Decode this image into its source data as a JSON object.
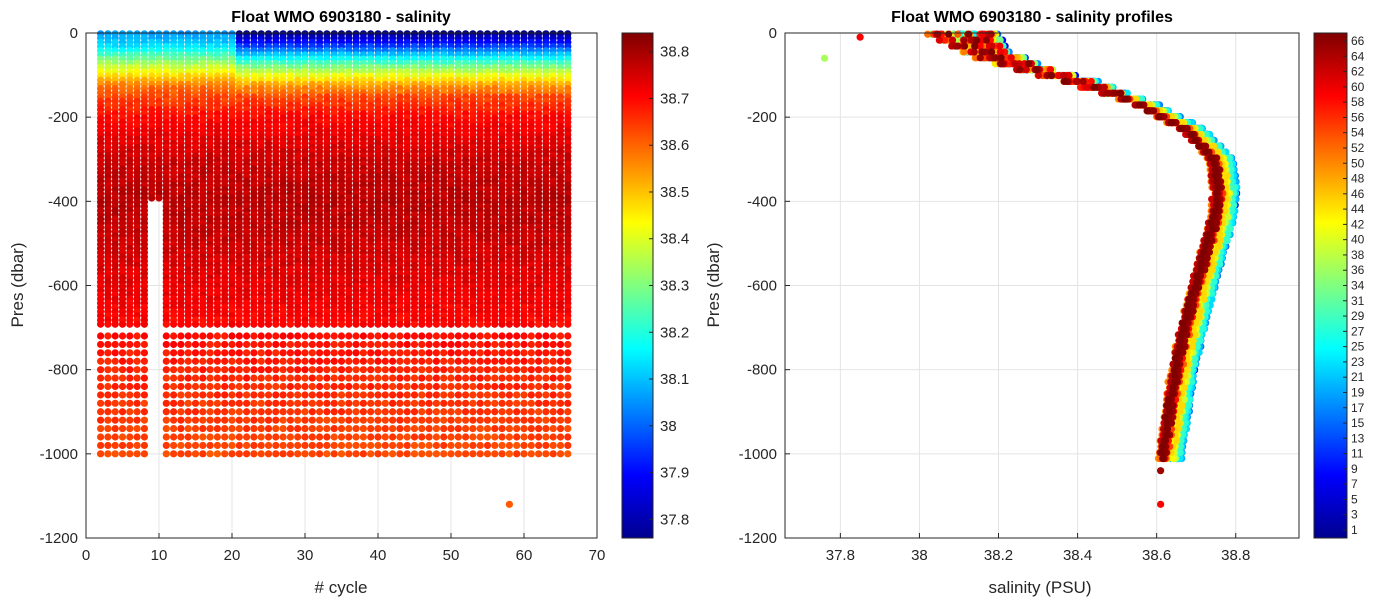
{
  "chart_data": [
    {
      "type": "scatter",
      "title": "Float WMO 6903180 - salinity",
      "xlabel": "# cycle",
      "ylabel": "Pres (dbar)",
      "xlim": [
        0,
        70
      ],
      "ylim": [
        -1200,
        0
      ],
      "xticks": [
        "0",
        "10",
        "20",
        "30",
        "40",
        "50",
        "60",
        "70"
      ],
      "yticks": [
        "0",
        "-200",
        "-400",
        "-600",
        "-800",
        "-1000",
        "-1200"
      ],
      "grid": true,
      "colormap": "jet",
      "colorbar": {
        "clim": [
          37.76,
          38.84
        ],
        "ticks": [
          "38.8",
          "38.7",
          "38.6",
          "38.5",
          "38.4",
          "38.3",
          "38.2",
          "38.1",
          "38",
          "37.9",
          "37.8"
        ]
      },
      "cycles": {
        "first": 2,
        "last": 66,
        "deep_gaps": [
          9,
          10
        ]
      },
      "profile_depth_dbar": 1000,
      "deep_outlier": {
        "x": 58,
        "y": -1120,
        "salinity": 38.61
      },
      "surface_fresh_cycles": [
        21,
        22,
        23,
        24,
        25,
        26,
        27,
        28,
        29,
        30,
        31,
        32,
        33,
        34,
        35,
        36,
        37,
        38,
        39,
        40,
        41,
        42,
        43,
        44,
        45,
        46,
        47,
        48,
        49,
        50,
        51,
        52,
        53,
        54,
        55,
        56,
        57,
        58,
        59,
        60,
        61,
        62,
        63,
        64,
        65,
        66
      ],
      "mean_salinity_profile": [
        {
          "pres": 0,
          "salinity": 38.1
        },
        {
          "pres": -30,
          "salinity": 38.15
        },
        {
          "pres": -80,
          "salinity": 38.38
        },
        {
          "pres": -130,
          "salinity": 38.6
        },
        {
          "pres": -200,
          "salinity": 38.7
        },
        {
          "pres": -300,
          "salinity": 38.76
        },
        {
          "pres": -400,
          "salinity": 38.78
        },
        {
          "pres": -500,
          "salinity": 38.76
        },
        {
          "pres": -600,
          "salinity": 38.73
        },
        {
          "pres": -700,
          "salinity": 38.7
        },
        {
          "pres": -800,
          "salinity": 38.67
        },
        {
          "pres": -900,
          "salinity": 38.65
        },
        {
          "pres": -1000,
          "salinity": 38.63
        }
      ]
    },
    {
      "type": "scatter",
      "title": "Float WMO 6903180 - salinity profiles",
      "xlabel": "salinity (PSU)",
      "ylabel": "Pres (dbar)",
      "xlim": [
        37.66,
        38.96
      ],
      "ylim": [
        -1200,
        0
      ],
      "xticks": [
        "37.8",
        "38",
        "38.2",
        "38.4",
        "38.6",
        "38.8"
      ],
      "yticks": [
        "0",
        "-200",
        "-400",
        "-600",
        "-800",
        "-1000",
        "-1200"
      ],
      "grid": true,
      "colormap": "jet",
      "colorbar": {
        "clim": [
          1,
          66
        ],
        "ticks": [
          "66",
          "64",
          "62",
          "60",
          "58",
          "56",
          "54",
          "52",
          "50",
          "48",
          "46",
          "44",
          "42",
          "40",
          "38",
          "36",
          "34",
          "31",
          "29",
          "27",
          "25",
          "23",
          "21",
          "19",
          "17",
          "15",
          "13",
          "11",
          "9",
          "7",
          "5",
          "3",
          "1"
        ]
      },
      "profile_shape": [
        {
          "pres": 0,
          "salinity": 38.1
        },
        {
          "pres": -40,
          "salinity": 38.15
        },
        {
          "pres": -80,
          "salinity": 38.26
        },
        {
          "pres": -120,
          "salinity": 38.42
        },
        {
          "pres": -170,
          "salinity": 38.56
        },
        {
          "pres": -230,
          "salinity": 38.68
        },
        {
          "pres": -300,
          "salinity": 38.75
        },
        {
          "pres": -380,
          "salinity": 38.76
        },
        {
          "pres": -450,
          "salinity": 38.75
        },
        {
          "pres": -550,
          "salinity": 38.72
        },
        {
          "pres": -650,
          "salinity": 38.69
        },
        {
          "pres": -750,
          "salinity": 38.665
        },
        {
          "pres": -850,
          "salinity": 38.645
        },
        {
          "pres": -950,
          "salinity": 38.63
        },
        {
          "pres": -1010,
          "salinity": 38.62
        }
      ],
      "outliers": [
        {
          "salinity": 37.76,
          "pres": -60,
          "cycle": 36
        },
        {
          "salinity": 37.85,
          "pres": -10,
          "cycle": 58
        },
        {
          "salinity": 38.61,
          "pres": -1120,
          "cycle": 58
        },
        {
          "salinity": 38.61,
          "pres": -1040,
          "cycle": 64
        }
      ]
    }
  ]
}
